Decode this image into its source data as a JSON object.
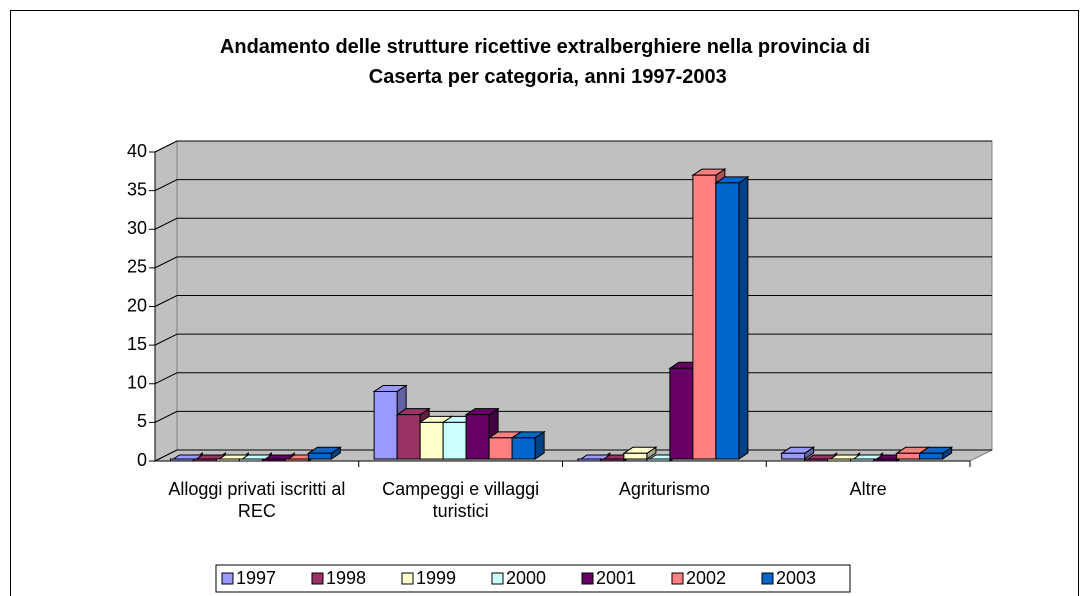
{
  "chart_data": {
    "type": "bar",
    "title": "Andamento delle strutture ricettive extralberghiere nella provincia di Caserta per categoria, anni 1997-2003",
    "categories": [
      "Alloggi privati iscritti al REC",
      "Campeggi e villaggi turistici",
      "Agriturismo",
      "Altre"
    ],
    "series": [
      {
        "name": "1997",
        "color": "#9999ff",
        "values": [
          0,
          9,
          0,
          1
        ]
      },
      {
        "name": "1998",
        "color": "#993366",
        "values": [
          0,
          6,
          0,
          0
        ]
      },
      {
        "name": "1999",
        "color": "#ffffcc",
        "values": [
          0,
          5,
          1,
          0
        ]
      },
      {
        "name": "2000",
        "color": "#ccffff",
        "values": [
          0,
          5,
          0,
          0
        ]
      },
      {
        "name": "2001",
        "color": "#660066",
        "values": [
          0,
          6,
          12,
          0
        ]
      },
      {
        "name": "2002",
        "color": "#ff8080",
        "values": [
          0,
          3,
          37,
          1
        ]
      },
      {
        "name": "2003",
        "color": "#0066cc",
        "values": [
          1,
          3,
          36,
          1
        ]
      }
    ],
    "ylim": [
      0,
      40
    ],
    "yticks": [
      0,
      5,
      10,
      15,
      20,
      25,
      30,
      35,
      40
    ],
    "grid": true,
    "legend": "bottom"
  }
}
